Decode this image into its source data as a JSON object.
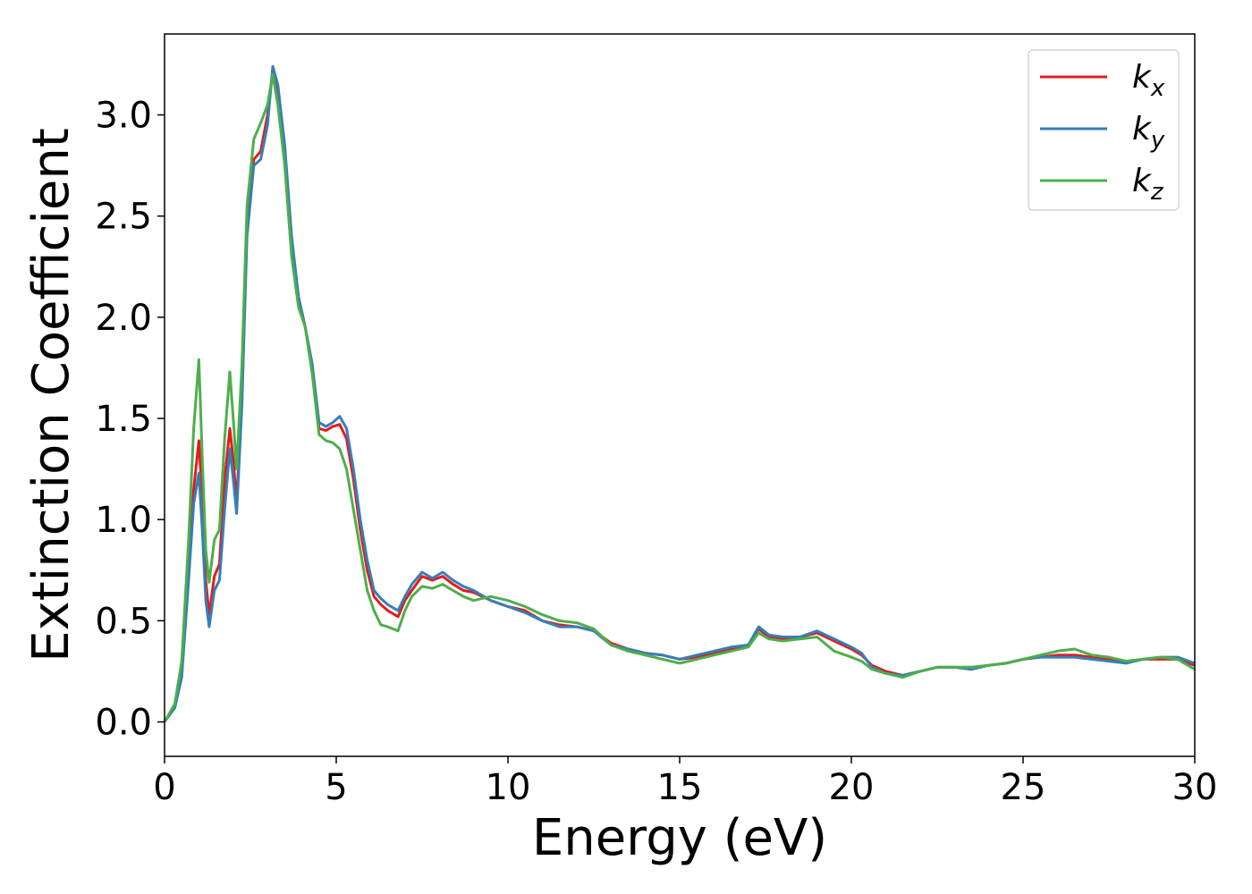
{
  "chart_data": {
    "type": "line",
    "xlabel": "Energy (eV)",
    "ylabel": "Extinction Coefficient",
    "xlim": [
      0,
      30
    ],
    "ylim": [
      -0.17,
      3.4
    ],
    "xticks": [
      "0",
      "5",
      "10",
      "15",
      "20",
      "25",
      "30"
    ],
    "yticks": [
      "0.0",
      "0.5",
      "1.0",
      "1.5",
      "2.0",
      "2.5",
      "3.0"
    ],
    "grid": false,
    "legend_position": "top-right",
    "series": [
      {
        "name": "k_x",
        "label_main": "k",
        "label_sub": "x",
        "color": "#e41a1c",
        "x": [
          0,
          0.3,
          0.5,
          0.7,
          0.85,
          1.0,
          1.1,
          1.2,
          1.3,
          1.45,
          1.6,
          1.75,
          1.9,
          2.0,
          2.1,
          2.25,
          2.4,
          2.6,
          2.8,
          3.0,
          3.15,
          3.3,
          3.5,
          3.7,
          3.9,
          4.1,
          4.3,
          4.5,
          4.7,
          4.9,
          5.1,
          5.3,
          5.5,
          5.7,
          5.9,
          6.1,
          6.3,
          6.5,
          6.8,
          7.0,
          7.2,
          7.5,
          7.8,
          8.1,
          8.4,
          8.7,
          9.0,
          9.5,
          10.0,
          10.5,
          11.0,
          11.5,
          12.0,
          12.5,
          13.0,
          13.5,
          14.0,
          14.5,
          15.0,
          15.5,
          16.0,
          16.5,
          17.0,
          17.3,
          17.6,
          18.0,
          18.5,
          19.0,
          19.5,
          20.0,
          20.3,
          20.6,
          21.0,
          21.5,
          22.0,
          22.5,
          23.0,
          23.5,
          24.0,
          24.5,
          25.0,
          25.5,
          26.0,
          26.5,
          27.0,
          27.5,
          28.0,
          28.5,
          29.0,
          29.5,
          30.0
        ],
        "values": [
          0.0,
          0.08,
          0.25,
          0.75,
          1.15,
          1.39,
          1.1,
          0.7,
          0.53,
          0.72,
          0.78,
          1.2,
          1.45,
          1.3,
          1.08,
          1.6,
          2.45,
          2.78,
          2.82,
          3.0,
          3.22,
          3.1,
          2.8,
          2.35,
          2.1,
          1.95,
          1.75,
          1.45,
          1.44,
          1.46,
          1.47,
          1.4,
          1.2,
          0.95,
          0.75,
          0.62,
          0.58,
          0.55,
          0.52,
          0.6,
          0.65,
          0.72,
          0.7,
          0.72,
          0.68,
          0.65,
          0.64,
          0.6,
          0.57,
          0.55,
          0.5,
          0.48,
          0.47,
          0.45,
          0.39,
          0.36,
          0.34,
          0.33,
          0.31,
          0.32,
          0.34,
          0.36,
          0.38,
          0.46,
          0.42,
          0.41,
          0.42,
          0.44,
          0.4,
          0.36,
          0.33,
          0.28,
          0.25,
          0.23,
          0.25,
          0.27,
          0.27,
          0.27,
          0.28,
          0.29,
          0.31,
          0.32,
          0.33,
          0.33,
          0.32,
          0.31,
          0.3,
          0.31,
          0.31,
          0.31,
          0.28
        ]
      },
      {
        "name": "k_y",
        "label_main": "k",
        "label_sub": "y",
        "color": "#377eb8",
        "x": [
          0,
          0.3,
          0.5,
          0.7,
          0.85,
          1.0,
          1.1,
          1.2,
          1.3,
          1.45,
          1.6,
          1.75,
          1.9,
          2.0,
          2.1,
          2.25,
          2.4,
          2.6,
          2.8,
          3.0,
          3.15,
          3.3,
          3.5,
          3.7,
          3.9,
          4.1,
          4.3,
          4.5,
          4.7,
          4.9,
          5.1,
          5.3,
          5.5,
          5.7,
          5.9,
          6.1,
          6.3,
          6.5,
          6.8,
          7.0,
          7.2,
          7.5,
          7.8,
          8.1,
          8.4,
          8.7,
          9.0,
          9.5,
          10.0,
          10.5,
          11.0,
          11.5,
          12.0,
          12.5,
          13.0,
          13.5,
          14.0,
          14.5,
          15.0,
          15.5,
          16.0,
          16.5,
          17.0,
          17.3,
          17.6,
          18.0,
          18.5,
          19.0,
          19.5,
          20.0,
          20.3,
          20.6,
          21.0,
          21.5,
          22.0,
          22.5,
          23.0,
          23.5,
          24.0,
          24.5,
          25.0,
          25.5,
          26.0,
          26.5,
          27.0,
          27.5,
          28.0,
          28.5,
          29.0,
          29.5,
          30.0
        ],
        "values": [
          0.0,
          0.07,
          0.22,
          0.7,
          1.08,
          1.23,
          0.95,
          0.6,
          0.47,
          0.65,
          0.7,
          1.05,
          1.35,
          1.2,
          1.03,
          1.55,
          2.4,
          2.75,
          2.78,
          2.95,
          3.24,
          3.15,
          2.85,
          2.4,
          2.1,
          1.95,
          1.77,
          1.48,
          1.46,
          1.48,
          1.51,
          1.45,
          1.25,
          1.0,
          0.8,
          0.65,
          0.61,
          0.58,
          0.55,
          0.62,
          0.68,
          0.74,
          0.71,
          0.74,
          0.7,
          0.67,
          0.65,
          0.6,
          0.57,
          0.54,
          0.5,
          0.47,
          0.47,
          0.45,
          0.38,
          0.36,
          0.34,
          0.33,
          0.31,
          0.33,
          0.35,
          0.37,
          0.38,
          0.47,
          0.43,
          0.42,
          0.42,
          0.45,
          0.41,
          0.37,
          0.34,
          0.27,
          0.24,
          0.23,
          0.25,
          0.27,
          0.27,
          0.26,
          0.28,
          0.29,
          0.31,
          0.32,
          0.32,
          0.32,
          0.31,
          0.3,
          0.29,
          0.31,
          0.32,
          0.32,
          0.29
        ]
      },
      {
        "name": "k_z",
        "label_main": "k",
        "label_sub": "z",
        "color": "#4daf4a",
        "x": [
          0,
          0.3,
          0.5,
          0.7,
          0.85,
          1.0,
          1.1,
          1.2,
          1.3,
          1.45,
          1.6,
          1.75,
          1.9,
          2.0,
          2.1,
          2.25,
          2.4,
          2.6,
          2.8,
          3.0,
          3.15,
          3.3,
          3.5,
          3.7,
          3.9,
          4.1,
          4.3,
          4.5,
          4.7,
          4.9,
          5.1,
          5.3,
          5.5,
          5.7,
          5.9,
          6.1,
          6.3,
          6.5,
          6.8,
          7.0,
          7.2,
          7.5,
          7.8,
          8.1,
          8.4,
          8.7,
          9.0,
          9.5,
          10.0,
          10.5,
          11.0,
          11.5,
          12.0,
          12.5,
          13.0,
          13.5,
          14.0,
          14.5,
          15.0,
          15.5,
          16.0,
          16.5,
          17.0,
          17.3,
          17.6,
          18.0,
          18.5,
          19.0,
          19.5,
          20.0,
          20.3,
          20.6,
          21.0,
          21.5,
          22.0,
          22.5,
          23.0,
          23.5,
          24.0,
          24.5,
          25.0,
          25.5,
          26.0,
          26.5,
          27.0,
          27.5,
          28.0,
          28.5,
          29.0,
          29.5,
          30.0
        ],
        "values": [
          0.0,
          0.09,
          0.3,
          0.9,
          1.45,
          1.79,
          1.3,
          0.85,
          0.69,
          0.9,
          0.95,
          1.4,
          1.73,
          1.5,
          1.25,
          1.75,
          2.55,
          2.88,
          2.96,
          3.05,
          3.2,
          3.05,
          2.75,
          2.3,
          2.05,
          1.95,
          1.72,
          1.42,
          1.39,
          1.38,
          1.35,
          1.25,
          1.05,
          0.85,
          0.65,
          0.55,
          0.48,
          0.47,
          0.45,
          0.55,
          0.62,
          0.67,
          0.66,
          0.68,
          0.65,
          0.62,
          0.6,
          0.62,
          0.6,
          0.57,
          0.53,
          0.5,
          0.49,
          0.46,
          0.38,
          0.35,
          0.33,
          0.31,
          0.29,
          0.31,
          0.33,
          0.35,
          0.37,
          0.44,
          0.41,
          0.4,
          0.41,
          0.42,
          0.35,
          0.32,
          0.3,
          0.26,
          0.24,
          0.22,
          0.25,
          0.27,
          0.27,
          0.27,
          0.28,
          0.29,
          0.31,
          0.33,
          0.35,
          0.36,
          0.33,
          0.32,
          0.3,
          0.31,
          0.32,
          0.31,
          0.26
        ]
      }
    ]
  }
}
